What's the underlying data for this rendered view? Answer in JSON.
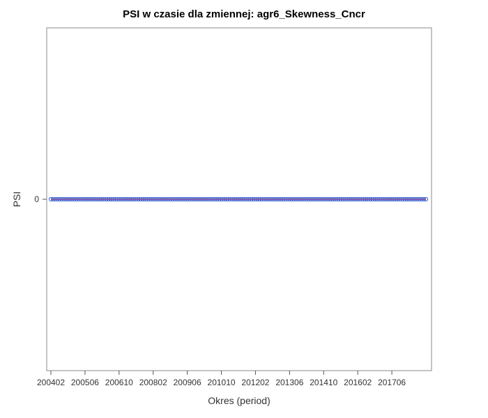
{
  "chart_data": {
    "type": "line",
    "title": "PSI w czasie dla zmiennej: agr6_Skewness_Cncr",
    "xlabel": "Okres (period)",
    "ylabel": "PSI",
    "x_tick_labels": [
      "200402",
      "200506",
      "200610",
      "200802",
      "200906",
      "201010",
      "201202",
      "201306",
      "201410",
      "201602",
      "201706"
    ],
    "y_tick_labels": [
      "0"
    ],
    "x_range": [
      "200402",
      "201810"
    ],
    "ylim": [
      -1,
      1
    ],
    "grid": false,
    "series": [
      {
        "x_start": "200402",
        "x_end": "201810",
        "frequency": "monthly",
        "constant_value": 0,
        "line_color": "#e0245e",
        "marker": "circle",
        "marker_color": "#3a5fcd"
      }
    ]
  }
}
